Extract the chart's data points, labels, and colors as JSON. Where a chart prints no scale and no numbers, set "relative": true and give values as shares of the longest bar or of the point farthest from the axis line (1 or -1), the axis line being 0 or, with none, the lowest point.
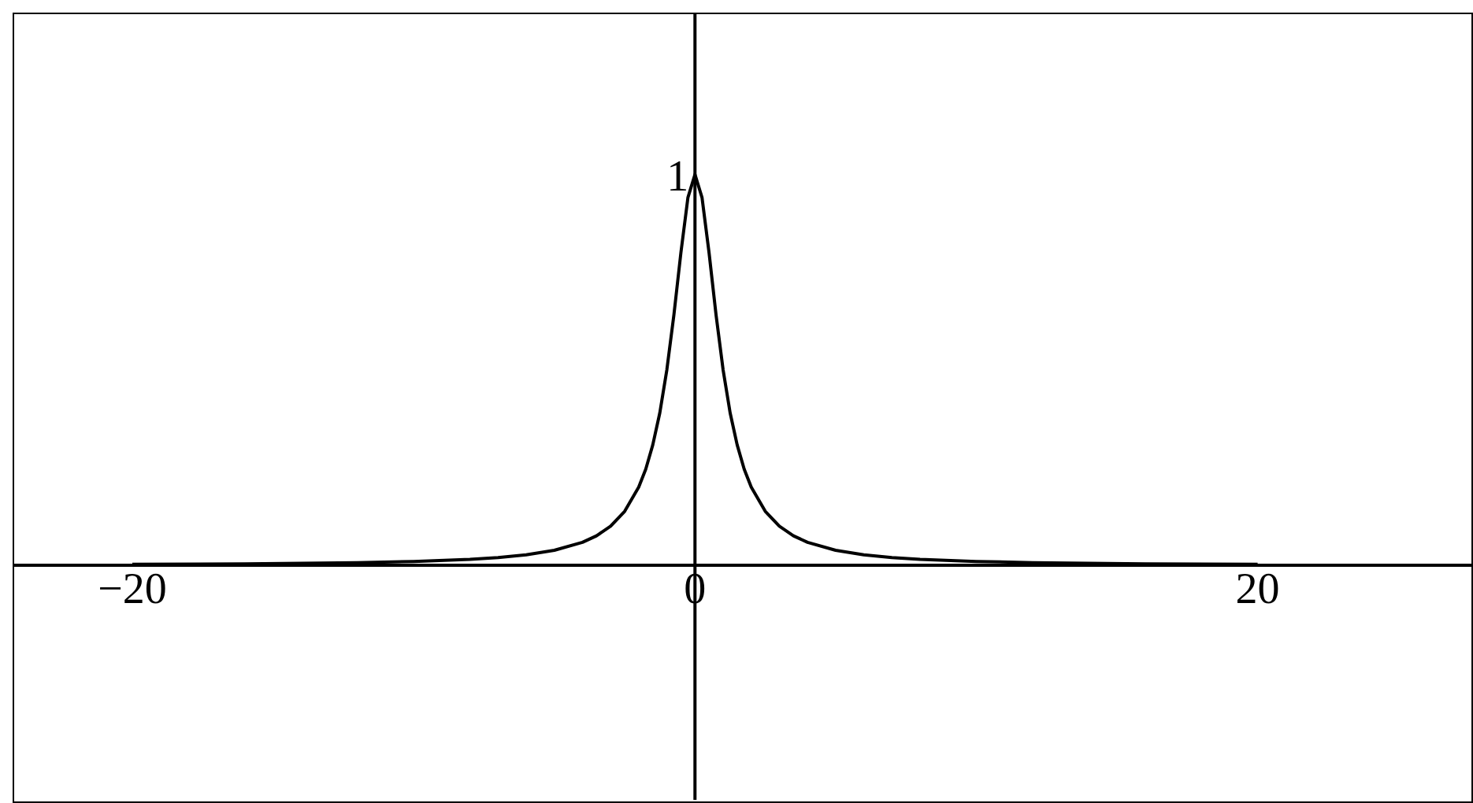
{
  "chart_data": {
    "type": "line",
    "relative": true,
    "x": [
      -20,
      -16,
      -12,
      -10,
      -8,
      -7,
      -6,
      -5,
      -4,
      -3.5,
      -3,
      -2.5,
      -2,
      -1.75,
      -1.5,
      -1.25,
      -1,
      -0.75,
      -0.5,
      -0.25,
      0,
      0.25,
      0.5,
      0.75,
      1,
      1.25,
      1.5,
      1.75,
      2,
      2.5,
      3,
      3.5,
      4,
      5,
      6,
      7,
      8,
      10,
      12,
      16,
      20
    ],
    "series": [
      {
        "color": "#000000",
        "values": [
          0.0025,
          0.0039,
          0.0069,
          0.0099,
          0.0154,
          0.02,
          0.027,
          0.0385,
          0.0588,
          0.0755,
          0.1,
          0.138,
          0.2,
          0.246,
          0.308,
          0.39,
          0.5,
          0.64,
          0.8,
          0.941,
          1,
          0.941,
          0.8,
          0.64,
          0.5,
          0.39,
          0.308,
          0.246,
          0.2,
          0.138,
          0.1,
          0.0755,
          0.0588,
          0.0385,
          0.027,
          0.02,
          0.0154,
          0.0099,
          0.0069,
          0.0039,
          0.0025
        ]
      }
    ],
    "xlim": [
      -24.2,
      27.6
    ],
    "xticks": [
      {
        "value": -20,
        "label": "−20"
      },
      0,
      20
    ],
    "annotations": [
      {
        "text": "1",
        "x": 0,
        "y": 1
      }
    ]
  }
}
